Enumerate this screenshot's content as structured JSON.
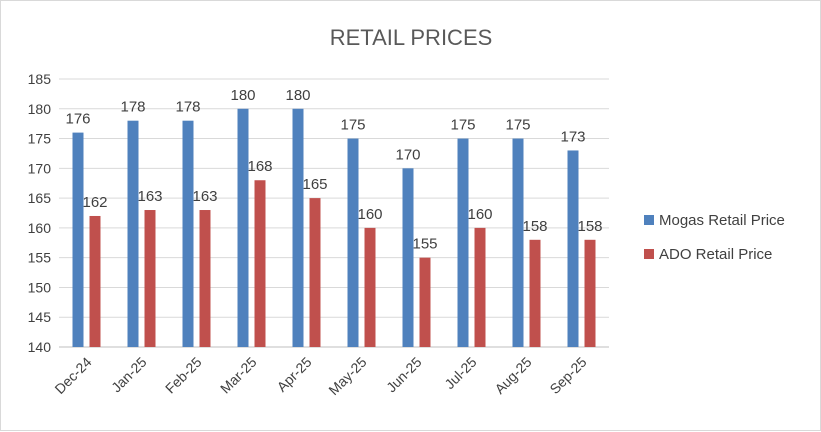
{
  "chart_data": {
    "type": "bar",
    "title": "RETAIL PRICES",
    "xlabel": "",
    "ylabel": "",
    "ylim": [
      140,
      185
    ],
    "ytick_step": 5,
    "grid": "horizontal",
    "legend_position": "right",
    "categories": [
      "Dec-24",
      "Jan-25",
      "Feb-25",
      "Mar-25",
      "Apr-25",
      "May-25",
      "Jun-25",
      "Jul-25",
      "Aug-25",
      "Sep-25"
    ],
    "series": [
      {
        "name": "Mogas Retail Price",
        "color": "#4f81bd",
        "values": [
          176,
          178,
          178,
          180,
          180,
          175,
          170,
          175,
          175,
          173
        ]
      },
      {
        "name": "ADO Retail Price",
        "color": "#c0504d",
        "values": [
          162,
          163,
          163,
          168,
          165,
          160,
          155,
          160,
          158,
          158
        ]
      }
    ]
  }
}
